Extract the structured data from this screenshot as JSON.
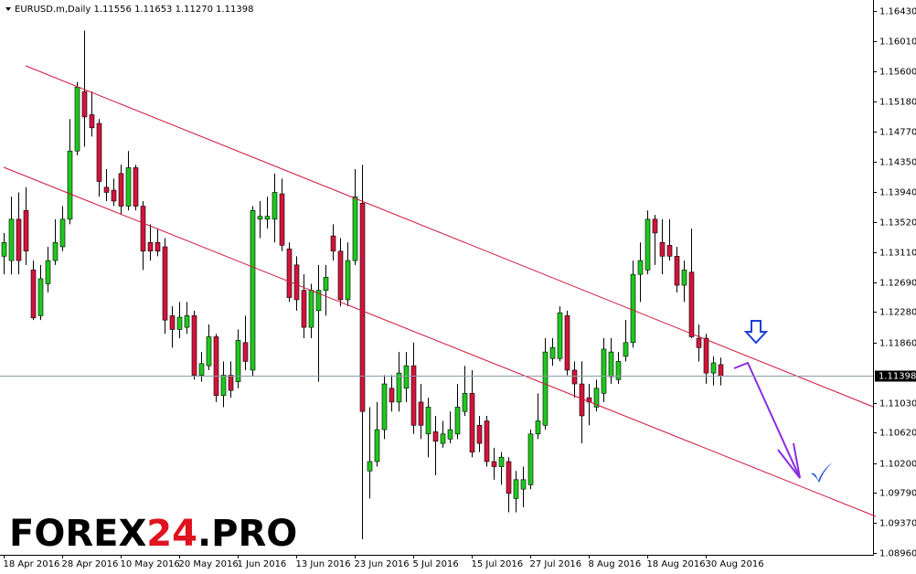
{
  "chart_data": {
    "type": "candlestick",
    "title": "EURUSD.m,Daily  1.11556 1.11653 1.11270 1.11398",
    "watermark": {
      "left": "FOREX",
      "number": "24",
      "right": ".PRO"
    },
    "categories": [
      "18 Apr 2016",
      null,
      null,
      null,
      null,
      null,
      null,
      null,
      "28 Apr 2016",
      null,
      null,
      null,
      null,
      null,
      null,
      null,
      "10 May 2016",
      null,
      null,
      null,
      null,
      null,
      null,
      null,
      "20 May 2016",
      null,
      null,
      null,
      null,
      null,
      null,
      null,
      "1 Jun 2016",
      null,
      null,
      null,
      null,
      null,
      null,
      null,
      "13 Jun 2016",
      null,
      null,
      null,
      null,
      null,
      null,
      null,
      "23 Jun 2016",
      null,
      null,
      null,
      null,
      null,
      null,
      null,
      "5 Jul 2016",
      null,
      null,
      null,
      null,
      null,
      null,
      null,
      "15 Jul 2016",
      null,
      null,
      null,
      null,
      null,
      null,
      null,
      "27 Jul 2016",
      null,
      null,
      null,
      null,
      null,
      null,
      null,
      "8 Aug 2016",
      null,
      null,
      null,
      null,
      null,
      null,
      null,
      "18 Aug 2016",
      null,
      null,
      null,
      null,
      null,
      null,
      null,
      "30 Aug 2016",
      null,
      null
    ],
    "open": [
      1.1305,
      1.1299,
      1.1356,
      1.1368,
      1.1286,
      1.1223,
      1.1267,
      1.1299,
      1.1318,
      1.1356,
      1.145,
      1.1532,
      1.15,
      1.1488,
      1.14,
      1.1396,
      1.1419,
      1.1374,
      1.1427,
      1.1374,
      1.1324,
      1.1324,
      1.1318,
      1.1223,
      1.1204,
      1.1207,
      1.1223,
      1.1141,
      1.1154,
      1.1194,
      1.1113,
      1.1141,
      1.1132,
      1.1186,
      1.1148,
      1.1356,
      1.1356,
      1.1356,
      1.1391,
      1.1315,
      1.1293,
      1.1258,
      1.1207,
      1.123,
      1.1258,
      1.1333,
      1.1312,
      1.1245,
      1.1299,
      1.1378,
      1.1009,
      1.1022,
      1.1066,
      1.1123,
      1.1104,
      1.1123,
      1.1154,
      1.1104,
      1.106,
      1.1063,
      1.1047,
      1.1053,
      1.106,
      1.1091,
      1.1116,
      1.1072,
      1.1078,
      1.1022,
      1.1015,
      1.1022,
      1.0971,
      1.0984,
      1.099,
      1.106,
      1.1072,
      1.1164,
      1.1164,
      1.1223,
      1.1148,
      1.1129,
      1.111,
      1.1097,
      1.1116,
      1.1139,
      1.1135,
      1.1167,
      1.1186,
      1.128,
      1.1286,
      1.1356,
      1.1324,
      1.132,
      1.1305,
      1.1265,
      1.1283,
      1.1192,
      1.1192,
      1.1144,
      1.11556
    ],
    "high": [
      1.1337,
      1.1387,
      1.1393,
      1.14,
      1.1299,
      1.1293,
      1.1318,
      1.1356,
      1.1374,
      1.1494,
      1.1545,
      1.1616,
      1.1532,
      1.1494,
      1.1425,
      1.1412,
      1.1431,
      1.145,
      1.1431,
      1.1381,
      1.1349,
      1.1343,
      1.133,
      1.1236,
      1.1242,
      1.1242,
      1.123,
      1.1173,
      1.1211,
      1.1198,
      1.116,
      1.116,
      1.1204,
      1.1223,
      1.1374,
      1.1381,
      1.1387,
      1.1419,
      1.1412,
      1.1324,
      1.1305,
      1.128,
      1.1267,
      1.1293,
      1.1293,
      1.1349,
      1.133,
      1.1324,
      1.1425,
      1.1431,
      1.1097,
      1.1104,
      1.1141,
      1.1141,
      1.1173,
      1.1173,
      1.1186,
      1.1129,
      1.111,
      1.1085,
      1.1078,
      1.1091,
      1.1129,
      1.1154,
      1.1148,
      1.1085,
      1.1085,
      1.1041,
      1.1035,
      1.1028,
      1.1009,
      1.1015,
      1.1066,
      1.1116,
      1.1192,
      1.1192,
      1.1236,
      1.123,
      1.116,
      1.116,
      1.1129,
      1.1135,
      1.1192,
      1.1192,
      1.1173,
      1.1217,
      1.1299,
      1.1324,
      1.1368,
      1.1362,
      1.1356,
      1.1356,
      1.1318,
      1.1299,
      1.1343,
      1.1211,
      1.1198,
      1.1167,
      1.11653
    ],
    "low": [
      1.128,
      1.128,
      1.128,
      1.1293,
      1.1217,
      1.1217,
      1.1255,
      1.1293,
      1.1312,
      1.1349,
      1.1444,
      1.1456,
      1.147,
      1.1387,
      1.1381,
      1.1374,
      1.1362,
      1.1368,
      1.1368,
      1.1286,
      1.1299,
      1.1305,
      1.1198,
      1.1179,
      1.1192,
      1.1198,
      1.1135,
      1.1132,
      1.1148,
      1.1104,
      1.1097,
      1.111,
      1.1123,
      1.1148,
      1.1139,
      1.133,
      1.1343,
      1.1324,
      1.1312,
      1.1242,
      1.123,
      1.1192,
      1.1192,
      1.1132,
      1.1223,
      1.1299,
      1.1236,
      1.1236,
      1.1293,
      1.0915,
      1.0971,
      1.1015,
      1.1053,
      1.1091,
      1.1091,
      1.1104,
      1.106,
      1.1053,
      1.1028,
      1.1003,
      1.1041,
      1.1047,
      1.1053,
      1.1085,
      1.1028,
      1.1035,
      1.1015,
      1.0997,
      1.099,
      1.0952,
      1.0952,
      1.0959,
      1.0984,
      1.1053,
      1.1066,
      1.1154,
      1.116,
      1.1141,
      1.111,
      1.1047,
      1.1072,
      1.1091,
      1.1104,
      1.1129,
      1.1129,
      1.116,
      1.1179,
      1.1242,
      1.128,
      1.1293,
      1.128,
      1.1299,
      1.1255,
      1.1242,
      1.1192,
      1.116,
      1.1129,
      1.1127,
      1.1127
    ],
    "close": [
      1.1324,
      1.1356,
      1.1299,
      1.1312,
      1.122,
      1.1274,
      1.1299,
      1.1324,
      1.1356,
      1.145,
      1.1538,
      1.1497,
      1.1482,
      1.1408,
      1.1393,
      1.1381,
      1.1374,
      1.1427,
      1.1374,
      1.1312,
      1.1312,
      1.1312,
      1.1217,
      1.1204,
      1.1221,
      1.1223,
      1.1141,
      1.1157,
      1.1194,
      1.1113,
      1.1141,
      1.112,
      1.1189,
      1.116,
      1.1368,
      1.136,
      1.136,
      1.1393,
      1.132,
      1.1248,
      1.1245,
      1.1207,
      1.1258,
      1.1258,
      1.1276,
      1.1312,
      1.1245,
      1.1299,
      1.1387,
      1.1091,
      1.1022,
      1.1066,
      1.1129,
      1.1104,
      1.1144,
      1.1154,
      1.1072,
      1.1072,
      1.1097,
      1.105,
      1.106,
      1.1066,
      1.1097,
      1.1116,
      1.1035,
      1.1047,
      1.1022,
      1.1015,
      1.1028,
      1.0978,
      1.0997,
      1.0997,
      1.106,
      1.1078,
      1.1173,
      1.1179,
      1.1227,
      1.1148,
      1.1129,
      1.1085,
      1.1104,
      1.1123,
      1.1177,
      1.1173,
      1.116,
      1.1186,
      1.128,
      1.1299,
      1.1356,
      1.1337,
      1.1305,
      1.1305,
      1.1265,
      1.1286,
      1.1194,
      1.1179,
      1.1144,
      1.1158,
      1.11398
    ],
    "up_color": "#1ec81e",
    "down_color": "#d2143c",
    "last_price": 1.11398,
    "ylim": [
      1.0896,
      1.1643
    ],
    "yticks": [
      {
        "value": 1.1643,
        "label": "1.16430"
      },
      {
        "value": 1.1601,
        "label": "1.16010"
      },
      {
        "value": 1.156,
        "label": "1.15600"
      },
      {
        "value": 1.1518,
        "label": "1.15180"
      },
      {
        "value": 1.1477,
        "label": "1.14770"
      },
      {
        "value": 1.1435,
        "label": "1.14350"
      },
      {
        "value": 1.1394,
        "label": "1.13940"
      },
      {
        "value": 1.1352,
        "label": "1.13520"
      },
      {
        "value": 1.1311,
        "label": "1.13110"
      },
      {
        "value": 1.1269,
        "label": "1.12690"
      },
      {
        "value": 1.1228,
        "label": "1.12280"
      },
      {
        "value": 1.1186,
        "label": "1.11860"
      },
      {
        "value": 1.1103,
        "label": "1.11030"
      },
      {
        "value": 1.1062,
        "label": "1.10620"
      },
      {
        "value": 1.102,
        "label": "1.10200"
      },
      {
        "value": 1.0979,
        "label": "1.09790"
      },
      {
        "value": 1.0937,
        "label": "1.09370"
      },
      {
        "value": 1.0896,
        "label": "1.08960"
      }
    ]
  }
}
